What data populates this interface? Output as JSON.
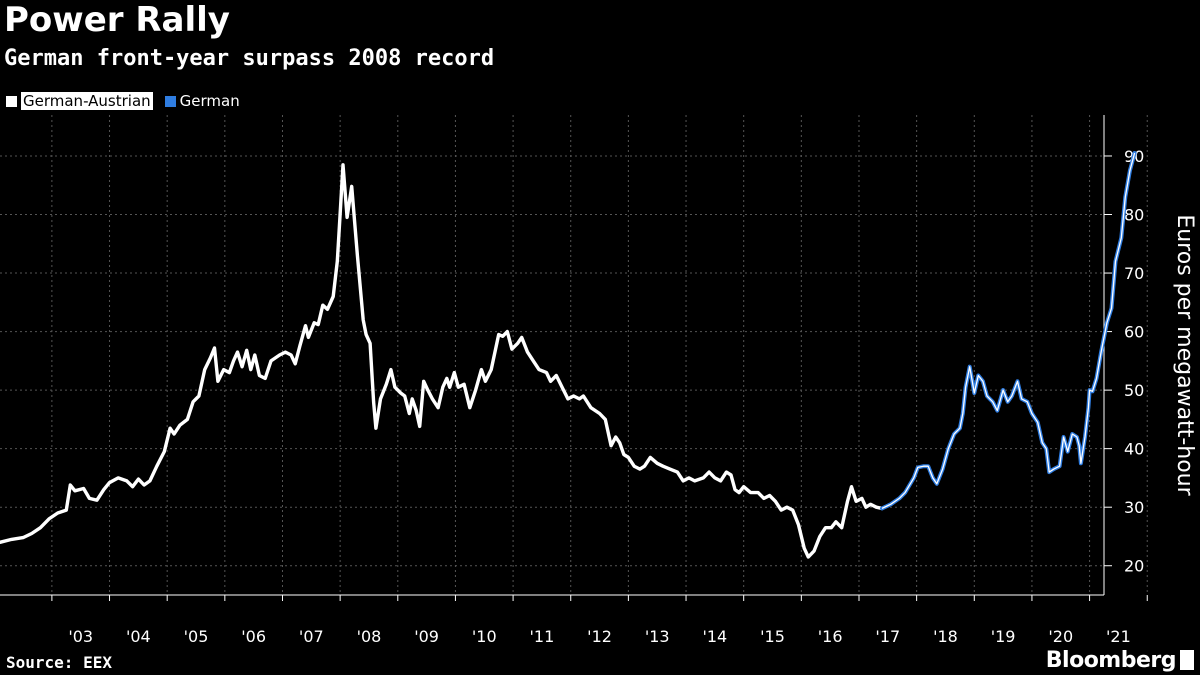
{
  "header": {
    "title": "Power Rally",
    "subtitle": "German front-year surpass 2008 record"
  },
  "legend": [
    {
      "label": "German-Austrian",
      "color": "#ffffff"
    },
    {
      "label": "German",
      "color": "#2f7de1"
    }
  ],
  "footer": {
    "source": "Source: EEX",
    "brand": "Bloomberg"
  },
  "chart_data": {
    "type": "line",
    "title": "Power Rally",
    "subtitle": "German front-year surpass 2008 record",
    "ylabel": "Euros per megawatt-hour",
    "ylim": [
      15,
      97
    ],
    "xlim": [
      2002.1,
      2021.25
    ],
    "y_ticks": [
      20,
      30,
      40,
      50,
      60,
      70,
      80,
      90
    ],
    "x_tick_labels": [
      "'03",
      "'04",
      "'05",
      "'06",
      "'07",
      "'08",
      "'09",
      "'10",
      "'11",
      "'12",
      "'13",
      "'14",
      "'15",
      "'16",
      "'17",
      "'18",
      "'19",
      "'20",
      "'21"
    ],
    "grid": true,
    "legend_position": "top-left",
    "series": [
      {
        "name": "German-Austrian",
        "color": "#ffffff",
        "points": [
          [
            2002.1,
            24.0
          ],
          [
            2002.3,
            24.5
          ],
          [
            2002.5,
            24.8
          ],
          [
            2002.65,
            25.5
          ],
          [
            2002.8,
            26.5
          ],
          [
            2002.95,
            28.0
          ],
          [
            2003.1,
            29.0
          ],
          [
            2003.25,
            29.5
          ],
          [
            2003.32,
            33.8
          ],
          [
            2003.4,
            32.8
          ],
          [
            2003.55,
            33.2
          ],
          [
            2003.65,
            31.5
          ],
          [
            2003.78,
            31.2
          ],
          [
            2003.9,
            33.0
          ],
          [
            2004.0,
            34.2
          ],
          [
            2004.15,
            35.0
          ],
          [
            2004.3,
            34.5
          ],
          [
            2004.4,
            33.5
          ],
          [
            2004.5,
            34.8
          ],
          [
            2004.6,
            33.8
          ],
          [
            2004.7,
            34.5
          ],
          [
            2004.82,
            37.0
          ],
          [
            2004.95,
            39.5
          ],
          [
            2005.05,
            43.5
          ],
          [
            2005.12,
            42.5
          ],
          [
            2005.22,
            44.0
          ],
          [
            2005.35,
            45.0
          ],
          [
            2005.45,
            48.0
          ],
          [
            2005.55,
            49.0
          ],
          [
            2005.65,
            53.5
          ],
          [
            2005.75,
            55.5
          ],
          [
            2005.82,
            57.2
          ],
          [
            2005.88,
            51.5
          ],
          [
            2005.98,
            53.5
          ],
          [
            2006.08,
            53.0
          ],
          [
            2006.15,
            55.0
          ],
          [
            2006.22,
            56.5
          ],
          [
            2006.3,
            54.0
          ],
          [
            2006.38,
            56.8
          ],
          [
            2006.45,
            53.5
          ],
          [
            2006.52,
            56.0
          ],
          [
            2006.6,
            52.5
          ],
          [
            2006.7,
            52.0
          ],
          [
            2006.8,
            55.0
          ],
          [
            2006.95,
            56.0
          ],
          [
            2007.05,
            56.5
          ],
          [
            2007.15,
            56.0
          ],
          [
            2007.22,
            54.5
          ],
          [
            2007.3,
            57.5
          ],
          [
            2007.4,
            61.0
          ],
          [
            2007.45,
            59.0
          ],
          [
            2007.55,
            61.5
          ],
          [
            2007.62,
            61.2
          ],
          [
            2007.7,
            64.5
          ],
          [
            2007.78,
            63.8
          ],
          [
            2007.88,
            66.0
          ],
          [
            2007.95,
            72.0
          ],
          [
            2008.0,
            80.0
          ],
          [
            2008.05,
            88.5
          ],
          [
            2008.12,
            79.5
          ],
          [
            2008.2,
            84.8
          ],
          [
            2008.3,
            73.0
          ],
          [
            2008.4,
            62.0
          ],
          [
            2008.45,
            59.5
          ],
          [
            2008.52,
            58.0
          ],
          [
            2008.58,
            48.0
          ],
          [
            2008.62,
            43.5
          ],
          [
            2008.7,
            48.5
          ],
          [
            2008.8,
            51.0
          ],
          [
            2008.88,
            53.5
          ],
          [
            2008.95,
            50.5
          ],
          [
            2009.05,
            49.5
          ],
          [
            2009.12,
            49.0
          ],
          [
            2009.2,
            46.0
          ],
          [
            2009.25,
            48.5
          ],
          [
            2009.32,
            46.5
          ],
          [
            2009.38,
            43.8
          ],
          [
            2009.45,
            51.5
          ],
          [
            2009.52,
            50.0
          ],
          [
            2009.6,
            48.5
          ],
          [
            2009.7,
            47.0
          ],
          [
            2009.78,
            50.5
          ],
          [
            2009.85,
            52.0
          ],
          [
            2009.9,
            50.5
          ],
          [
            2009.98,
            53.0
          ],
          [
            2010.05,
            50.5
          ],
          [
            2010.15,
            51.0
          ],
          [
            2010.25,
            47.0
          ],
          [
            2010.35,
            50.0
          ],
          [
            2010.45,
            53.5
          ],
          [
            2010.52,
            51.5
          ],
          [
            2010.62,
            53.5
          ],
          [
            2010.75,
            59.5
          ],
          [
            2010.82,
            59.2
          ],
          [
            2010.9,
            60.0
          ],
          [
            2010.98,
            57.0
          ],
          [
            2011.08,
            58.0
          ],
          [
            2011.15,
            59.0
          ],
          [
            2011.25,
            56.5
          ],
          [
            2011.35,
            55.0
          ],
          [
            2011.45,
            53.5
          ],
          [
            2011.58,
            53.0
          ],
          [
            2011.65,
            51.5
          ],
          [
            2011.75,
            52.5
          ],
          [
            2011.85,
            50.5
          ],
          [
            2011.95,
            48.5
          ],
          [
            2012.05,
            49.0
          ],
          [
            2012.15,
            48.5
          ],
          [
            2012.22,
            49.0
          ],
          [
            2012.35,
            47.0
          ],
          [
            2012.5,
            46.0
          ],
          [
            2012.6,
            45.0
          ],
          [
            2012.7,
            40.5
          ],
          [
            2012.78,
            42.0
          ],
          [
            2012.85,
            41.0
          ],
          [
            2012.92,
            39.0
          ],
          [
            2013.0,
            38.5
          ],
          [
            2013.1,
            37.0
          ],
          [
            2013.2,
            36.5
          ],
          [
            2013.28,
            37.0
          ],
          [
            2013.38,
            38.5
          ],
          [
            2013.5,
            37.5
          ],
          [
            2013.6,
            37.0
          ],
          [
            2013.72,
            36.5
          ],
          [
            2013.85,
            36.0
          ],
          [
            2013.95,
            34.5
          ],
          [
            2014.05,
            35.0
          ],
          [
            2014.15,
            34.5
          ],
          [
            2014.3,
            35.0
          ],
          [
            2014.4,
            36.0
          ],
          [
            2014.5,
            35.0
          ],
          [
            2014.6,
            34.5
          ],
          [
            2014.7,
            36.0
          ],
          [
            2014.78,
            35.5
          ],
          [
            2014.85,
            33.0
          ],
          [
            2014.92,
            32.5
          ],
          [
            2015.0,
            33.5
          ],
          [
            2015.12,
            32.5
          ],
          [
            2015.25,
            32.5
          ],
          [
            2015.35,
            31.5
          ],
          [
            2015.45,
            32.0
          ],
          [
            2015.55,
            31.0
          ],
          [
            2015.65,
            29.5
          ],
          [
            2015.75,
            30.0
          ],
          [
            2015.85,
            29.5
          ],
          [
            2015.95,
            27.0
          ],
          [
            2016.05,
            23.0
          ],
          [
            2016.12,
            21.5
          ],
          [
            2016.22,
            22.5
          ],
          [
            2016.32,
            25.0
          ],
          [
            2016.42,
            26.5
          ],
          [
            2016.52,
            26.5
          ],
          [
            2016.6,
            27.5
          ],
          [
            2016.7,
            26.5
          ],
          [
            2016.8,
            31.0
          ],
          [
            2016.87,
            33.5
          ],
          [
            2016.95,
            31.0
          ],
          [
            2017.05,
            31.5
          ],
          [
            2017.12,
            30.0
          ],
          [
            2017.2,
            30.5
          ],
          [
            2017.3,
            30.0
          ],
          [
            2017.4,
            29.8
          ]
        ]
      },
      {
        "name": "German",
        "color": "#2f7de1",
        "points": [
          [
            2017.4,
            29.8
          ],
          [
            2017.55,
            30.5
          ],
          [
            2017.7,
            31.5
          ],
          [
            2017.8,
            32.5
          ],
          [
            2017.95,
            35.0
          ],
          [
            2018.02,
            36.8
          ],
          [
            2018.12,
            37.0
          ],
          [
            2018.2,
            37.0
          ],
          [
            2018.28,
            35.0
          ],
          [
            2018.35,
            34.0
          ],
          [
            2018.45,
            36.5
          ],
          [
            2018.55,
            40.0
          ],
          [
            2018.65,
            42.5
          ],
          [
            2018.75,
            43.5
          ],
          [
            2018.8,
            46.0
          ],
          [
            2018.85,
            50.5
          ],
          [
            2018.92,
            54.0
          ],
          [
            2019.0,
            49.5
          ],
          [
            2019.07,
            52.5
          ],
          [
            2019.15,
            51.5
          ],
          [
            2019.22,
            49.0
          ],
          [
            2019.32,
            48.0
          ],
          [
            2019.4,
            46.5
          ],
          [
            2019.5,
            50.0
          ],
          [
            2019.58,
            48.0
          ],
          [
            2019.65,
            49.0
          ],
          [
            2019.75,
            51.5
          ],
          [
            2019.82,
            48.5
          ],
          [
            2019.92,
            48.0
          ],
          [
            2020.0,
            46.0
          ],
          [
            2020.1,
            44.5
          ],
          [
            2020.18,
            41.0
          ],
          [
            2020.25,
            40.0
          ],
          [
            2020.3,
            36.0
          ],
          [
            2020.38,
            36.5
          ],
          [
            2020.48,
            37.0
          ],
          [
            2020.55,
            42.0
          ],
          [
            2020.62,
            39.5
          ],
          [
            2020.7,
            42.5
          ],
          [
            2020.78,
            42.0
          ],
          [
            2020.82,
            40.5
          ],
          [
            2020.85,
            37.5
          ],
          [
            2020.92,
            42.0
          ],
          [
            2020.98,
            47.0
          ],
          [
            2021.0,
            50.0
          ],
          [
            2021.05,
            49.8
          ],
          [
            2021.12,
            52.0
          ],
          [
            2021.2,
            56.5
          ],
          [
            2021.3,
            61.5
          ],
          [
            2021.38,
            64.0
          ],
          [
            2021.45,
            72.0
          ],
          [
            2021.55,
            76.0
          ],
          [
            2021.62,
            83.0
          ],
          [
            2021.7,
            87.5
          ],
          [
            2021.78,
            90.5
          ]
        ]
      }
    ]
  }
}
